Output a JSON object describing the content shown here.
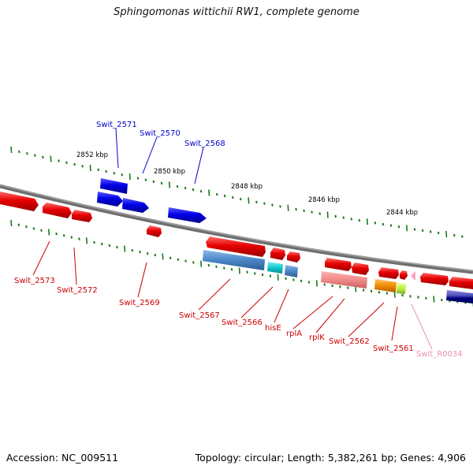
{
  "title": "Sphingomonas wittichii RW1, complete genome",
  "footer": {
    "accession": "Accession: NC_009511",
    "summary": "Topology: circular; Length: 5,382,261 bp; Genes: 4,906"
  },
  "colors": {
    "background": "#ffffff",
    "backbone": "#808080",
    "ticks": "#1a7a1a",
    "forward_gene": "#0000e6",
    "reverse_gene": "#e60000",
    "cds_strip": "#4a86c8",
    "trna": "#ff80aa",
    "blue_label": "#0000cc",
    "red_label": "#cc0000",
    "pink_label": "#ee8fb0"
  },
  "scale_labels": [
    "2852 kbp",
    "2850 kbp",
    "2848 kbp",
    "2846 kbp",
    "2844 kbp"
  ],
  "gene_labels": [
    {
      "text": "Swit_2571",
      "strand": "forward"
    },
    {
      "text": "Swit_2570",
      "strand": "forward"
    },
    {
      "text": "Swit_2568",
      "strand": "forward"
    },
    {
      "text": "Swit_2573",
      "strand": "reverse"
    },
    {
      "text": "Swit_2572",
      "strand": "reverse"
    },
    {
      "text": "Swit_2569",
      "strand": "reverse"
    },
    {
      "text": "Swit_2567",
      "strand": "reverse"
    },
    {
      "text": "Swit_2566",
      "strand": "reverse"
    },
    {
      "text": "hisE",
      "strand": "reverse"
    },
    {
      "text": "rplA",
      "strand": "reverse"
    },
    {
      "text": "rplK",
      "strand": "reverse"
    },
    {
      "text": "Swit_2562",
      "strand": "reverse"
    },
    {
      "text": "Swit_2561",
      "strand": "reverse"
    },
    {
      "text": "Swit_R0034",
      "strand": "rna"
    }
  ]
}
